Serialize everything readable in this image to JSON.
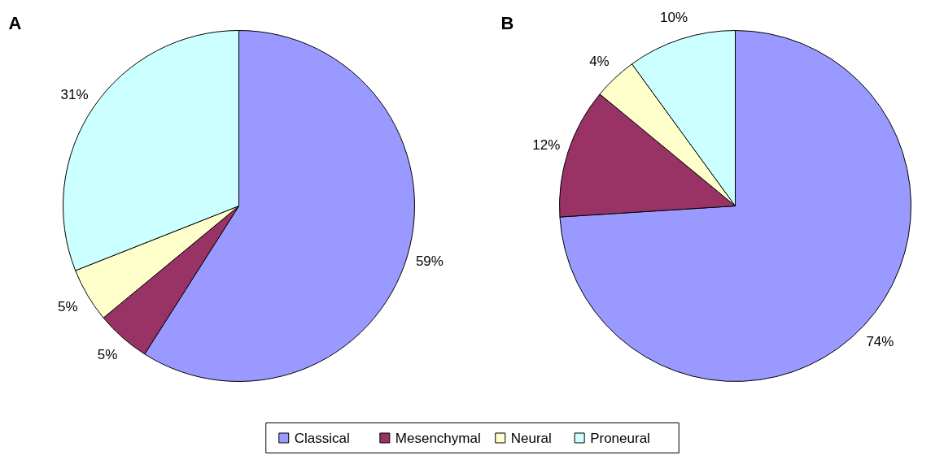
{
  "chart_data": [
    {
      "type": "pie",
      "title": "A",
      "categories": [
        "Classical",
        "Mesenchymal",
        "Neural",
        "Proneural"
      ],
      "values": [
        59,
        5,
        5,
        31
      ],
      "value_labels": [
        "59%",
        "5%",
        "5%",
        "31%"
      ],
      "colors": [
        "#9999ff",
        "#993366",
        "#ffffcc",
        "#ccffff"
      ],
      "legend": "bottom"
    },
    {
      "type": "pie",
      "title": "B",
      "categories": [
        null,
        null,
        null,
        null
      ],
      "values": [
        74,
        12,
        4,
        10
      ],
      "value_labels": [
        "74%",
        "12%",
        "4%",
        "10%"
      ],
      "colors": [
        "#9999ff",
        "#993366",
        "#ffffcc",
        "#ccffff"
      ]
    }
  ]
}
